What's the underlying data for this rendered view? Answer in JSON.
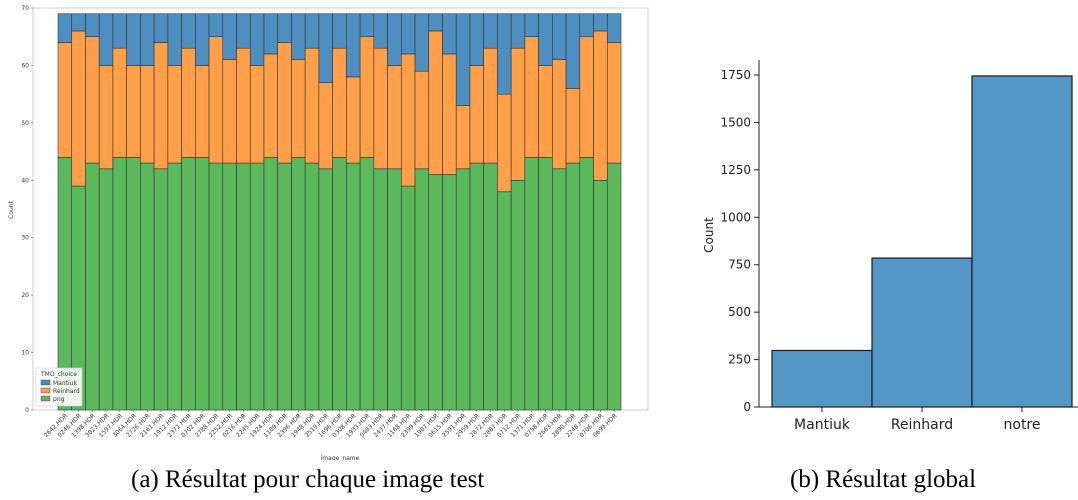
{
  "charts": [
    {
      "caption": "(a) Résultat pour chaque image test",
      "chart_data": {
        "type": "bar",
        "stacked": true,
        "xlabel": "image_name",
        "ylabel": "Count",
        "ylim": [
          0,
          70
        ],
        "yticks": [
          0,
          10,
          20,
          30,
          40,
          50,
          60,
          70
        ],
        "legend": {
          "title": "TMO_choice",
          "placement": "lower-left"
        },
        "categories": [
          "2642.HDR",
          "0246.HDR",
          "1398.HDR",
          "3023.HDR",
          "1597.HDR",
          "3064.HDR",
          "2726.HDR",
          "2161.HDR",
          "1912.HDR",
          "2372.HDR",
          "0702.HDR",
          "2788.HDR",
          "2252.HDR",
          "0216.HDR",
          "2245.HDR",
          "1924.HDR",
          "1189.HDR",
          "2396.HDR",
          "1948.HDR",
          "2519.HDR",
          "1696.HDR",
          "0308.HDR",
          "1933.HDR",
          "0483.HDR",
          "2437.HDR",
          "1168.HDR",
          "2399.HDR",
          "1987.HDR",
          "0615.HDR",
          "2591.HDR",
          "2959.HDR",
          "2872.HDR",
          "2887.HDR",
          "0712.HDR",
          "1371.HDR",
          "0758.HDR",
          "2663.HDR",
          "2890.HDR",
          "2248.HDR",
          "0706.HDR",
          "0699.HDR"
        ],
        "series": [
          {
            "name": "png",
            "color": "#5cb85c",
            "values": [
              44,
              39,
              43,
              42,
              44,
              44,
              43,
              42,
              43,
              44,
              44,
              43,
              43,
              43,
              43,
              44,
              43,
              44,
              43,
              42,
              44,
              43,
              44,
              42,
              42,
              39,
              42,
              41,
              41,
              42,
              43,
              43,
              38,
              40,
              44,
              44,
              42,
              43,
              44,
              40,
              43
            ]
          },
          {
            "name": "Reinhard",
            "color": "#ff9f4a",
            "values": [
              20,
              27,
              22,
              18,
              19,
              16,
              17,
              22,
              17,
              19,
              16,
              22,
              18,
              20,
              17,
              18,
              21,
              17,
              20,
              15,
              19,
              15,
              21,
              21,
              18,
              23,
              17,
              25,
              21,
              11,
              17,
              20,
              17,
              23,
              21,
              16,
              19,
              13,
              21,
              26,
              21
            ]
          },
          {
            "name": "Mantiuk",
            "color": "#4f8fc0",
            "values": [
              5,
              3,
              4,
              9,
              6,
              9,
              9,
              5,
              9,
              6,
              9,
              4,
              8,
              6,
              9,
              7,
              5,
              8,
              6,
              12,
              6,
              11,
              4,
              6,
              9,
              7,
              10,
              3,
              7,
              16,
              9,
              6,
              14,
              6,
              4,
              9,
              8,
              13,
              4,
              3,
              5
            ]
          }
        ]
      }
    },
    {
      "caption": "(b) Résultat global",
      "chart_data": {
        "type": "bar",
        "xlabel": "",
        "ylabel": "Count",
        "ylim": [
          0,
          1800
        ],
        "yticks": [
          0,
          250,
          500,
          750,
          1000,
          1250,
          1500,
          1750
        ],
        "categories": [
          "Mantiuk",
          "Reinhard",
          "notre"
        ],
        "values": [
          298,
          785,
          1745
        ],
        "color": "#5497c6"
      }
    }
  ]
}
